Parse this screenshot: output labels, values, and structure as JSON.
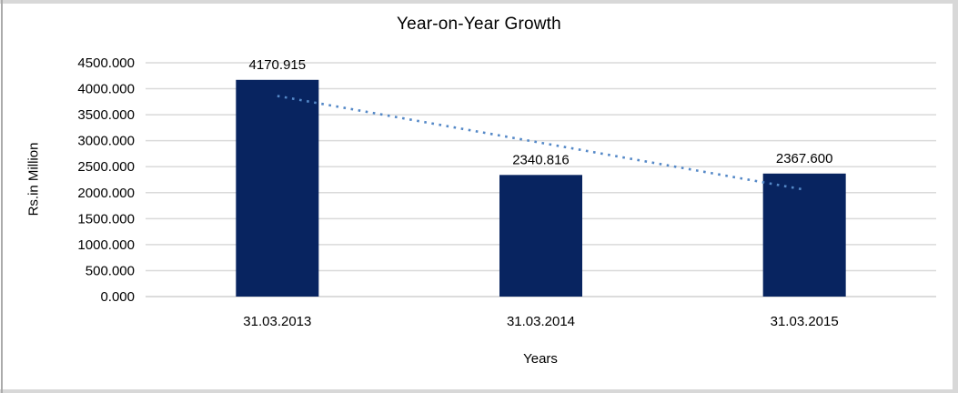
{
  "colors": {
    "bar": "#082460",
    "trendline": "#5488c7",
    "gridline": "#dadada",
    "axis_line": "#d0d0d0",
    "frame_outer": "#d8d8d8",
    "frame_left": "#ababab",
    "text": "#000000"
  },
  "chart_data": {
    "type": "bar",
    "title": "Year-on-Year Growth",
    "xlabel": "Years",
    "ylabel": "Rs.in Million",
    "categories": [
      "31.03.2013",
      "31.03.2014",
      "31.03.2015"
    ],
    "values": [
      4170.915,
      2340.816,
      2367.6
    ],
    "value_labels": [
      "4170.915",
      "2340.816",
      "2367.600"
    ],
    "ylim": [
      0,
      4500
    ],
    "ytick_step": 500,
    "ytick_labels": [
      "4500.000",
      "4000.000",
      "3500.000",
      "3000.000",
      "2500.000",
      "2000.000",
      "1500.000",
      "1000.000",
      "500.000",
      "0.000"
    ],
    "grid": true,
    "legend": false,
    "trendline": {
      "type": "linear",
      "style": "dotted"
    }
  }
}
